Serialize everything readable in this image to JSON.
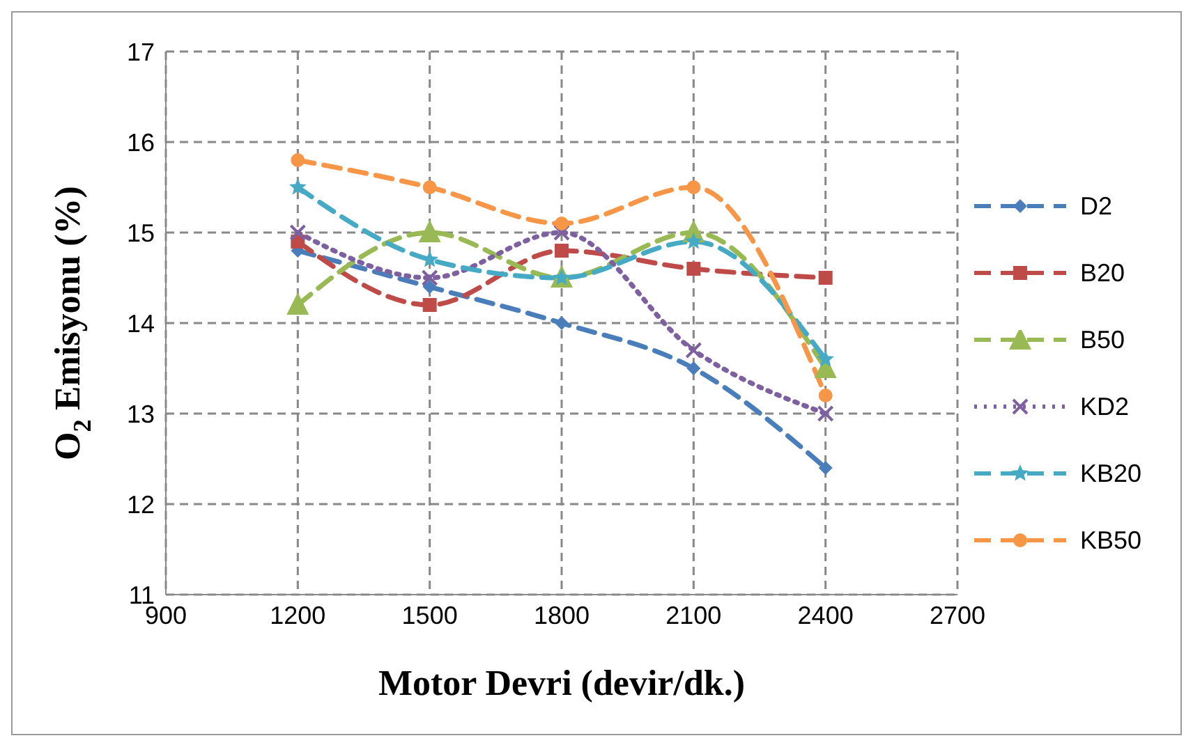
{
  "chart_data": {
    "type": "line",
    "xlabel": "Motor Devri (devir/dk.)",
    "ylabel": "O$_{2}$ Emisyonu (%)",
    "x": [
      1200,
      1500,
      1800,
      2100,
      2400
    ],
    "xlim": [
      900,
      2700
    ],
    "xticks": [
      900,
      1200,
      1500,
      1800,
      2100,
      2400,
      2700
    ],
    "ylim": [
      11,
      17
    ],
    "yticks": [
      11,
      12,
      13,
      14,
      15,
      16,
      17
    ],
    "grid": true,
    "legend": "right",
    "series": [
      {
        "name": "D2",
        "color": "#4a7ebb",
        "values": [
          14.8,
          14.4,
          14.0,
          13.5,
          12.4
        ],
        "marker": "diamond",
        "line_style": "dashed"
      },
      {
        "name": "B20",
        "color": "#be4b48",
        "values": [
          14.9,
          14.2,
          14.8,
          14.6,
          14.5
        ],
        "marker": "square",
        "line_style": "dashed"
      },
      {
        "name": "B50",
        "color": "#98b954",
        "values": [
          14.2,
          15.0,
          14.5,
          15.0,
          13.5
        ],
        "marker": "triangle",
        "line_style": "dashed"
      },
      {
        "name": "KD2",
        "color": "#7d60a0",
        "values": [
          15.0,
          14.5,
          15.0,
          13.7,
          13.0
        ],
        "marker": "cross",
        "line_style": "dotted"
      },
      {
        "name": "KB20",
        "color": "#46aac5",
        "values": [
          15.5,
          14.7,
          14.5,
          14.9,
          13.6
        ],
        "marker": "star",
        "line_style": "dashed"
      },
      {
        "name": "KB50",
        "color": "#f79646",
        "values": [
          15.8,
          15.5,
          15.1,
          15.5,
          13.2
        ],
        "marker": "circle",
        "line_style": "dashed"
      }
    ]
  }
}
